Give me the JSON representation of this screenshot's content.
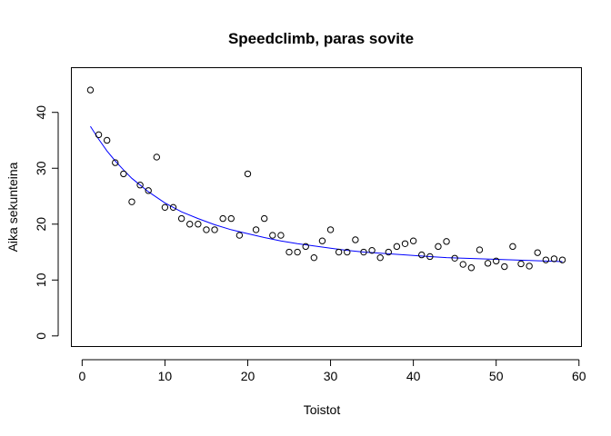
{
  "chart_data": {
    "type": "scatter",
    "title": "Speedclimb, paras sovite",
    "xlabel": "Toistot",
    "ylabel": "Aika sekunteina",
    "xlim": [
      -1.3,
      60.3
    ],
    "ylim": [
      -1.9,
      48.0
    ],
    "x_ticks": [
      0,
      10,
      20,
      30,
      40,
      50,
      60
    ],
    "y_ticks": [
      0,
      10,
      20,
      30,
      40
    ],
    "grid": false,
    "colors": {
      "points": "#000000",
      "fit": "#0000ff"
    },
    "series": [
      {
        "kind": "points",
        "x": [
          1,
          2,
          3,
          4,
          5,
          6,
          7,
          8,
          9,
          10,
          11,
          12,
          13,
          14,
          15,
          16,
          17,
          18,
          19,
          20,
          21,
          22,
          23,
          24,
          25,
          26,
          27,
          28,
          29,
          30,
          31,
          32,
          33,
          34,
          35,
          36,
          37,
          38,
          39,
          40,
          41,
          42,
          43,
          44,
          45,
          46,
          47,
          48,
          49,
          50,
          51,
          52,
          53,
          54,
          55,
          56,
          57,
          58
        ],
        "y": [
          44,
          36,
          35,
          31,
          29,
          24,
          27,
          26,
          32,
          23,
          23,
          21,
          20,
          20,
          19,
          19,
          21,
          21,
          18,
          29,
          19,
          21,
          18,
          18,
          15,
          15,
          16,
          14,
          17,
          19,
          15,
          15,
          17.2,
          15,
          15.3,
          14,
          15,
          16,
          16.5,
          17,
          14.5,
          14.2,
          16,
          16.9,
          13.9,
          12.8,
          12.2,
          15.4,
          13,
          13.4,
          12.4,
          16,
          12.9,
          12.5,
          14.9,
          13.6,
          13.8,
          13.6
        ]
      },
      {
        "kind": "fit-line",
        "x": [
          1,
          2,
          3,
          4,
          5,
          6,
          7,
          8,
          10,
          12,
          14,
          16,
          18,
          20,
          22,
          24,
          26,
          28,
          30,
          32,
          34,
          36,
          38,
          40,
          42,
          44,
          46,
          48,
          50,
          52,
          54,
          56,
          58
        ],
        "y": [
          37.5,
          35.2,
          33.1,
          31.3,
          29.7,
          28.2,
          27.0,
          25.8,
          23.8,
          22.2,
          21.0,
          19.9,
          19.0,
          18.3,
          17.6,
          17.0,
          16.5,
          16.1,
          15.7,
          15.3,
          15.0,
          14.8,
          14.6,
          14.4,
          14.2,
          14.0,
          13.9,
          13.8,
          13.7,
          13.6,
          13.5,
          13.4,
          13.3
        ]
      }
    ]
  }
}
